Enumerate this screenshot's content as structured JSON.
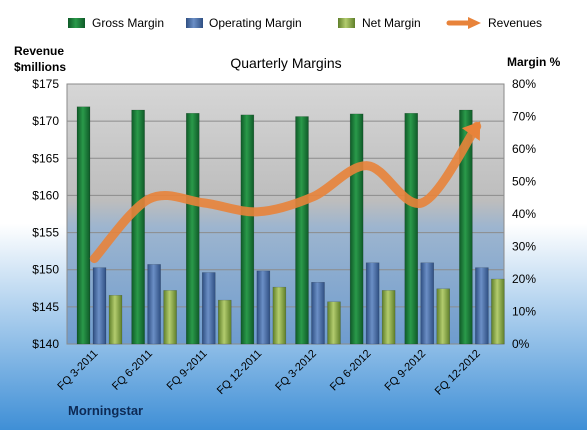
{
  "chart_data": {
    "type": "bar",
    "title": "Quarterly Margins",
    "left_axis_label_line1": "Revenue",
    "left_axis_label_line2": "$millions",
    "right_axis_label": "Margin %",
    "source": "Morningstar",
    "categories": [
      "FQ 3-2011",
      "FQ 6-2011",
      "FQ 9-2011",
      "FQ 12-2011",
      "FQ 3-2012",
      "FQ 6-2012",
      "FQ 9-2012",
      "FQ 12-2012"
    ],
    "left_axis": {
      "min": 140,
      "max": 175,
      "step": 5,
      "ticks": [
        "$140",
        "$145",
        "$150",
        "$155",
        "$160",
        "$165",
        "$170",
        "$175"
      ]
    },
    "right_axis": {
      "min": 0,
      "max": 80,
      "step": 10,
      "ticks": [
        "0%",
        "10%",
        "20%",
        "30%",
        "40%",
        "50%",
        "60%",
        "70%",
        "80%"
      ]
    },
    "series": [
      {
        "name": "Gross Margin",
        "axis": "right",
        "kind": "bar",
        "color": "#1f7a3a",
        "values": [
          73,
          72,
          71,
          70.5,
          70,
          70.8,
          71,
          72
        ]
      },
      {
        "name": "Operating Margin",
        "axis": "right",
        "kind": "bar",
        "color": "#4a6fa8",
        "values": [
          23.5,
          24.5,
          22,
          22.5,
          19,
          25,
          25,
          23.5
        ]
      },
      {
        "name": "Net Margin",
        "axis": "right",
        "kind": "bar",
        "color": "#8fae4c",
        "values": [
          15,
          16.5,
          13.5,
          17.5,
          13,
          16.5,
          17,
          20
        ]
      },
      {
        "name": "Revenues",
        "axis": "left",
        "kind": "line",
        "color": "#e8833a",
        "values": [
          151.5,
          159.5,
          159.0,
          157.8,
          159.8,
          164.0,
          159.0,
          169.3
        ]
      }
    ],
    "grid": true,
    "legend_position": "top"
  }
}
